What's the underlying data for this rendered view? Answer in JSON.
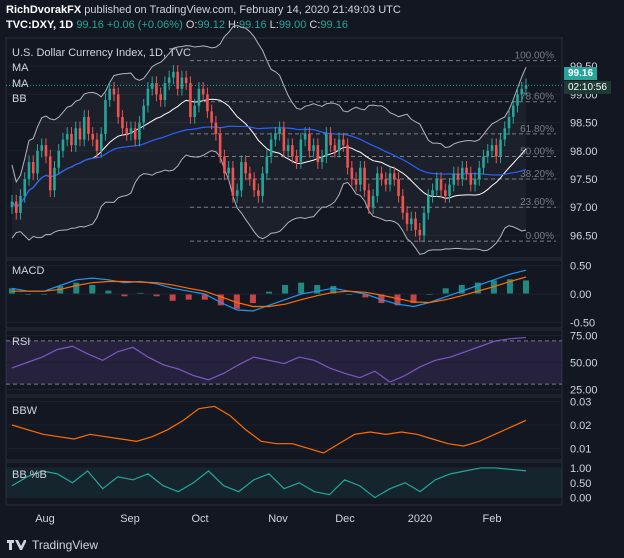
{
  "header": {
    "author": "RichDvorakFX",
    "published": "published on TradingView.com, February 14, 2020 21:49:03 UTC",
    "symbol": "TVC:DXY, 1D",
    "last": "99.16",
    "change": "+0.06 (+0.06%)",
    "o_label": "O:",
    "o_val": "99.12",
    "h_label": "H:",
    "h_val": "99.16",
    "l_label": "L:",
    "l_val": "99.00",
    "c_label": "C:",
    "c_val": "99.16"
  },
  "main": {
    "title": "U.S. Dollar Currency Index, 1D, TVC",
    "ma1": "MA",
    "ma2": "MA",
    "bb": "BB",
    "price_tag": "99.16",
    "countdown": "02:10:56"
  },
  "panes": {
    "macd": "MACD",
    "rsi": "RSI",
    "bbw": "BBW",
    "bbpb": "BB %B"
  },
  "footer": {
    "brand": "TradingView"
  },
  "colors": {
    "up": "#26a69a",
    "down": "#ef5350",
    "ma_fast": "#ffffff",
    "ma_slow": "#2962ff",
    "bb": "#b2b5be",
    "macd": "#2196f3",
    "signal": "#ff6d00",
    "rsi": "#7e57c2",
    "bbw": "#ff6d00",
    "bbpb": "#26a69a"
  },
  "chart_data": [
    {
      "type": "candlestick",
      "title": "U.S. Dollar Currency Index, 1D, TVC",
      "x_ticks": [
        "Aug",
        "Sep",
        "Oct",
        "Nov",
        "Dec",
        "2020",
        "Feb"
      ],
      "y_ticks": [
        96.5,
        97.0,
        97.5,
        98.0,
        98.5,
        99.0,
        99.5
      ],
      "ylim": [
        96.1,
        100.0
      ],
      "fib_levels": [
        {
          "label": "0.00%",
          "value": 96.4
        },
        {
          "label": "23.60%",
          "value": 97.0
        },
        {
          "label": "38.20%",
          "value": 97.5
        },
        {
          "label": "50.00%",
          "value": 97.9
        },
        {
          "label": "61.80%",
          "value": 98.3
        },
        {
          "label": "78.60%",
          "value": 98.87
        },
        {
          "label": "100.00%",
          "value": 99.6
        }
      ],
      "close_series": [
        97.1,
        96.9,
        97.2,
        97.5,
        97.8,
        97.6,
        98.0,
        98.1,
        97.9,
        97.3,
        97.7,
        98.0,
        98.2,
        98.3,
        98.1,
        98.4,
        98.2,
        98.6,
        98.3,
        98.2,
        98.0,
        98.3,
        98.9,
        99.1,
        99.0,
        98.6,
        98.4,
        98.3,
        98.4,
        98.2,
        98.5,
        98.8,
        99.1,
        99.2,
        99.0,
        98.9,
        99.2,
        99.3,
        99.4,
        99.1,
        99.3,
        99.2,
        98.6,
        98.8,
        99.1,
        99.0,
        98.7,
        98.5,
        98.3,
        97.9,
        97.6,
        97.7,
        97.2,
        97.3,
        97.8,
        97.6,
        97.5,
        97.3,
        97.2,
        97.6,
        97.9,
        98.2,
        98.3,
        98.4,
        98.0,
        98.1,
        97.9,
        97.8,
        98.2,
        98.3,
        98.0,
        98.1,
        97.8,
        97.9,
        98.3,
        98.1,
        98.0,
        98.2,
        98.1,
        97.7,
        97.5,
        97.4,
        97.7,
        97.3,
        97.0,
        97.2,
        97.6,
        97.5,
        97.4,
        97.6,
        97.5,
        97.2,
        96.9,
        96.7,
        96.8,
        96.6,
        96.5,
        96.9,
        97.2,
        97.3,
        97.5,
        97.3,
        97.2,
        97.4,
        97.6,
        97.5,
        97.7,
        97.6,
        97.4,
        97.5,
        97.7,
        97.9,
        98.0,
        98.1,
        97.9,
        98.2,
        98.4,
        98.6,
        98.8,
        99.0,
        99.1,
        99.16
      ]
    },
    {
      "type": "line",
      "title": "MACD",
      "y_ticks": [
        -0.5,
        0.0,
        0.5
      ],
      "ylim": [
        -0.6,
        0.6
      ],
      "series": [
        {
          "values": [
            0.1,
            0.05,
            0.05,
            0.15,
            0.25,
            0.28,
            0.25,
            0.2,
            0.22,
            0.18,
            0.1,
            0.05,
            0.0,
            -0.15,
            -0.28,
            -0.3,
            -0.2,
            -0.1,
            0.0,
            0.05,
            0.1,
            0.05,
            0.0,
            -0.1,
            -0.18,
            -0.22,
            -0.15,
            -0.05,
            0.05,
            0.15,
            0.25,
            0.35,
            0.42
          ]
        },
        {
          "values": [
            0.05,
            0.05,
            0.05,
            0.08,
            0.15,
            0.2,
            0.22,
            0.22,
            0.21,
            0.2,
            0.16,
            0.1,
            0.05,
            -0.05,
            -0.15,
            -0.22,
            -0.22,
            -0.18,
            -0.1,
            -0.03,
            0.03,
            0.05,
            0.03,
            -0.02,
            -0.08,
            -0.14,
            -0.15,
            -0.1,
            -0.03,
            0.05,
            0.13,
            0.22,
            0.3
          ]
        }
      ]
    },
    {
      "type": "line",
      "title": "RSI",
      "y_ticks": [
        25.0,
        50.0,
        75.0
      ],
      "ylim": [
        20,
        80
      ],
      "series": [
        {
          "values": [
            45,
            50,
            55,
            62,
            65,
            58,
            52,
            60,
            64,
            55,
            48,
            44,
            38,
            34,
            40,
            48,
            55,
            52,
            49,
            55,
            52,
            45,
            40,
            36,
            42,
            32,
            38,
            46,
            52,
            55,
            60,
            65,
            70,
            72,
            73
          ]
        }
      ]
    },
    {
      "type": "line",
      "title": "BBW",
      "y_ticks": [
        0.01,
        0.02,
        0.03
      ],
      "ylim": [
        0.005,
        0.032
      ],
      "series": [
        {
          "values": [
            0.02,
            0.018,
            0.016,
            0.015,
            0.014,
            0.016,
            0.015,
            0.014,
            0.013,
            0.015,
            0.018,
            0.022,
            0.027,
            0.028,
            0.024,
            0.018,
            0.013,
            0.012,
            0.012,
            0.01,
            0.008,
            0.012,
            0.016,
            0.017,
            0.016,
            0.017,
            0.016,
            0.014,
            0.012,
            0.011,
            0.013,
            0.016,
            0.019,
            0.022
          ]
        }
      ]
    },
    {
      "type": "line",
      "title": "BB %B",
      "y_ticks": [
        0.0,
        0.5,
        1.0
      ],
      "ylim": [
        -0.25,
        1.2
      ],
      "series": [
        {
          "values": [
            0.4,
            0.7,
            0.9,
            0.8,
            0.5,
            0.9,
            0.3,
            0.7,
            0.6,
            0.8,
            0.4,
            0.2,
            0.5,
            0.9,
            0.4,
            0.2,
            0.6,
            0.8,
            0.3,
            0.5,
            0.2,
            0.1,
            0.6,
            0.4,
            0.0,
            0.3,
            0.5,
            0.2,
            0.6,
            0.8,
            0.9,
            1.0,
            1.0,
            0.95,
            0.9
          ]
        }
      ]
    }
  ]
}
